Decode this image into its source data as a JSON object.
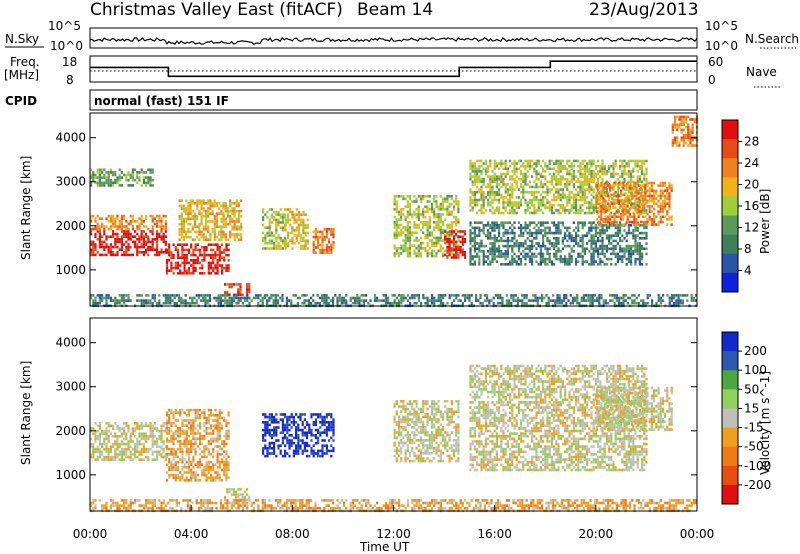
{
  "header": {
    "title": "Christmas Valley East (fitACF)",
    "beam": "Beam 14",
    "date": "23/Aug/2013"
  },
  "colors": {
    "power_scale": [
      "#1020e0",
      "#2a54a8",
      "#3f7f5a",
      "#5c9a5c",
      "#9ccf3a",
      "#f2b21a",
      "#f08020",
      "#e84a18",
      "#e01010"
    ],
    "velocity_scale": [
      "#1428d0",
      "#2c58b0",
      "#4aa83e",
      "#8fd060",
      "#c0c0b8",
      "#f0a020",
      "#f07a18",
      "#ea4c14",
      "#e01010"
    ],
    "axis": "#000000"
  },
  "chart_data": [
    {
      "type": "line",
      "panel": "noise",
      "left_label": "N.Sky",
      "right_label": "N.Search",
      "left_ticks": [
        "10^5",
        "10^0"
      ],
      "right_ticks": [
        "10^5",
        "10^0"
      ]
    },
    {
      "type": "line",
      "panel": "frequency-nave",
      "left_label": [
        "Freq.",
        "[MHz]"
      ],
      "right_label": "Nave",
      "left_ticks": [
        18,
        8
      ],
      "right_ticks": [
        60,
        0
      ],
      "freq_steps": [
        {
          "t": 0.0,
          "f": 13.6
        },
        {
          "t": 3.1,
          "f": 10.2
        },
        {
          "t": 6.8,
          "f": 10.2
        },
        {
          "t": 14.6,
          "f": 13.6
        },
        {
          "t": 18.2,
          "f": 16.0
        },
        {
          "t": 24.0,
          "f": 16.0
        }
      ]
    },
    {
      "type": "text",
      "panel": "cpid",
      "label": "CPID",
      "value": "normal (fast) 151 IF"
    },
    {
      "type": "heatmap",
      "panel": "power",
      "ylabel": "Slant Range [km]",
      "xlim": [
        0,
        24
      ],
      "ylim": [
        180,
        4560
      ],
      "yticks": [
        1000,
        2000,
        3000,
        4000
      ],
      "colorbar_label": "Power [dB]",
      "colorbar_ticks": [
        4,
        8,
        12,
        16,
        20,
        24,
        28
      ],
      "colorbar_range": [
        0,
        30
      ],
      "regions": [
        {
          "t0": 0.0,
          "t1": 3.0,
          "r0": 1350,
          "r1": 1900,
          "level": 8
        },
        {
          "t0": 0.0,
          "t1": 3.0,
          "r0": 1900,
          "r1": 2250,
          "level": 6
        },
        {
          "t0": 0.0,
          "t1": 2.5,
          "r0": 2900,
          "r1": 3300,
          "level": 3
        },
        {
          "t0": 3.0,
          "t1": 5.5,
          "r0": 900,
          "r1": 1600,
          "level": 8
        },
        {
          "t0": 3.5,
          "t1": 6.0,
          "r0": 1700,
          "r1": 2600,
          "level": 5
        },
        {
          "t0": 5.3,
          "t1": 6.3,
          "r0": 450,
          "r1": 700,
          "level": 7
        },
        {
          "t0": 6.8,
          "t1": 7.7,
          "r0": 1500,
          "r1": 2400,
          "level": 4
        },
        {
          "t0": 7.7,
          "t1": 8.6,
          "r0": 1500,
          "r1": 2400,
          "level": 5
        },
        {
          "t0": 8.8,
          "t1": 9.6,
          "r0": 1400,
          "r1": 1950,
          "level": 6
        },
        {
          "t0": 0.0,
          "t1": 24.0,
          "r0": 180,
          "r1": 450,
          "level": 2
        },
        {
          "t0": 12.0,
          "t1": 14.6,
          "r0": 1300,
          "r1": 2700,
          "level": 4
        },
        {
          "t0": 14.0,
          "t1": 14.8,
          "r0": 1300,
          "r1": 1900,
          "level": 8
        },
        {
          "t0": 15.0,
          "t1": 22.0,
          "r0": 1100,
          "r1": 2100,
          "level": 2
        },
        {
          "t0": 15.0,
          "t1": 22.0,
          "r0": 2300,
          "r1": 3500,
          "level": 4
        },
        {
          "t0": 20.0,
          "t1": 23.0,
          "r0": 2000,
          "r1": 3000,
          "level": 6
        },
        {
          "t0": 23.0,
          "t1": 24.0,
          "r0": 3800,
          "r1": 4500,
          "level": 6
        }
      ]
    },
    {
      "type": "heatmap",
      "panel": "velocity",
      "ylabel": "Slant Range [km]",
      "xlabel": "Time UT",
      "xlim": [
        0,
        24
      ],
      "ylim": [
        180,
        4560
      ],
      "yticks": [
        1000,
        2000,
        3000,
        4000
      ],
      "xticks": [
        "00:00",
        "04:00",
        "08:00",
        "12:00",
        "16:00",
        "20:00",
        "00:00"
      ],
      "colorbar_label": "Velocity [m s^-1]",
      "colorbar_ticks": [
        200,
        100,
        50,
        15,
        -15,
        -50,
        -100,
        -200
      ],
      "regions": [
        {
          "t0": 0.0,
          "t1": 3.0,
          "r0": 1350,
          "r1": 2200,
          "level": 4
        },
        {
          "t0": 3.0,
          "t1": 5.5,
          "r0": 900,
          "r1": 2500,
          "level": 5
        },
        {
          "t0": 5.3,
          "t1": 6.3,
          "r0": 450,
          "r1": 700,
          "level": 4
        },
        {
          "t0": 6.8,
          "t1": 9.6,
          "r0": 1400,
          "r1": 2400,
          "level": 0
        },
        {
          "t0": 0.0,
          "t1": 24.0,
          "r0": 180,
          "r1": 450,
          "level": 5
        },
        {
          "t0": 12.0,
          "t1": 14.6,
          "r0": 1300,
          "r1": 2700,
          "level": 4
        },
        {
          "t0": 15.0,
          "t1": 22.0,
          "r0": 1100,
          "r1": 3500,
          "level": 4
        },
        {
          "t0": 20.0,
          "t1": 23.0,
          "r0": 2000,
          "r1": 3000,
          "level": 4
        }
      ]
    }
  ]
}
